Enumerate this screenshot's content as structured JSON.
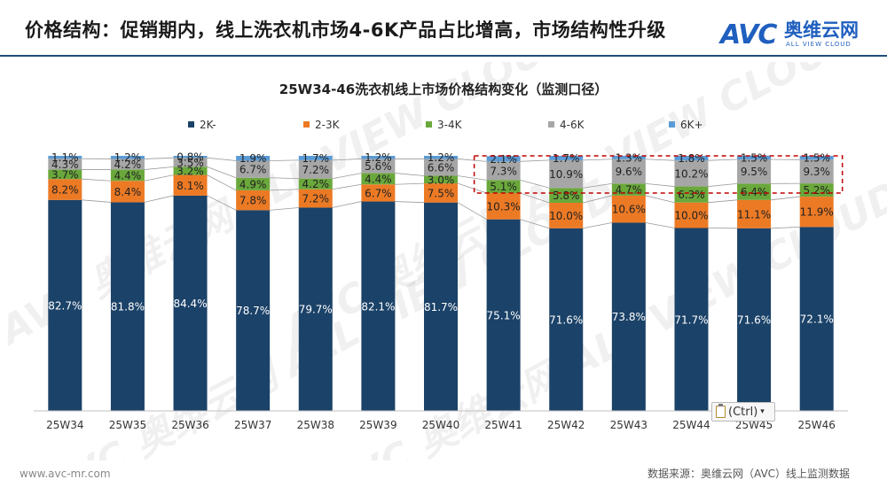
{
  "header": {
    "title": "价格结构：促销期内，线上洗衣机市场4-6K产品占比增高，市场结构性升级",
    "logo_mark": "AVC",
    "logo_cn": "奥维云网",
    "logo_en": "ALL VIEW CLOUD"
  },
  "footer": {
    "url": "www.avc-mr.com",
    "source": "数据来源：奥维云网（AVC）线上监测数据"
  },
  "paste_options": {
    "label": "(Ctrl)"
  },
  "chart_data": {
    "type": "bar",
    "stacked": true,
    "title": "25W34-46洗衣机线上市场价格结构变化（监测口径）",
    "xlabel": "",
    "ylabel": "",
    "ylim": [
      0,
      100
    ],
    "unit": "%",
    "categories": [
      "25W34",
      "25W35",
      "25W36",
      "25W37",
      "25W38",
      "25W39",
      "25W40",
      "25W41",
      "25W42",
      "25W43",
      "25W44",
      "25W45",
      "25W46"
    ],
    "legend_position": "top",
    "grid": false,
    "series": [
      {
        "name": "2K-",
        "color": "#1b4268",
        "values": [
          82.7,
          81.8,
          84.4,
          78.7,
          79.7,
          82.1,
          81.7,
          75.1,
          71.6,
          73.8,
          71.7,
          71.6,
          72.1
        ]
      },
      {
        "name": "2-3K",
        "color": "#ec7a25",
        "values": [
          8.2,
          8.4,
          8.1,
          7.8,
          7.2,
          6.7,
          7.5,
          10.3,
          10.0,
          10.6,
          10.0,
          11.1,
          11.9
        ]
      },
      {
        "name": "3-4K",
        "color": "#6aa83b",
        "values": [
          3.7,
          4.4,
          3.2,
          4.9,
          4.2,
          4.4,
          3.0,
          5.1,
          5.8,
          4.7,
          6.3,
          6.4,
          5.2
        ]
      },
      {
        "name": "4-6K",
        "color": "#a6a6a6",
        "values": [
          4.3,
          4.2,
          3.5,
          6.7,
          7.2,
          5.6,
          6.6,
          7.3,
          10.9,
          9.6,
          10.2,
          9.5,
          9.3
        ]
      },
      {
        "name": "6K+",
        "color": "#5b9bd5",
        "values": [
          1.1,
          1.2,
          0.8,
          1.9,
          1.7,
          1.2,
          1.2,
          2.1,
          1.7,
          1.3,
          1.8,
          1.5,
          1.5
        ]
      }
    ],
    "highlight": {
      "from": "25W41",
      "to": "25W46",
      "series": [
        "3-4K",
        "4-6K",
        "6K+"
      ],
      "style": "red dashed box"
    },
    "watermark": "AVC 奥维云网 ALL VIEW CLOUD"
  }
}
